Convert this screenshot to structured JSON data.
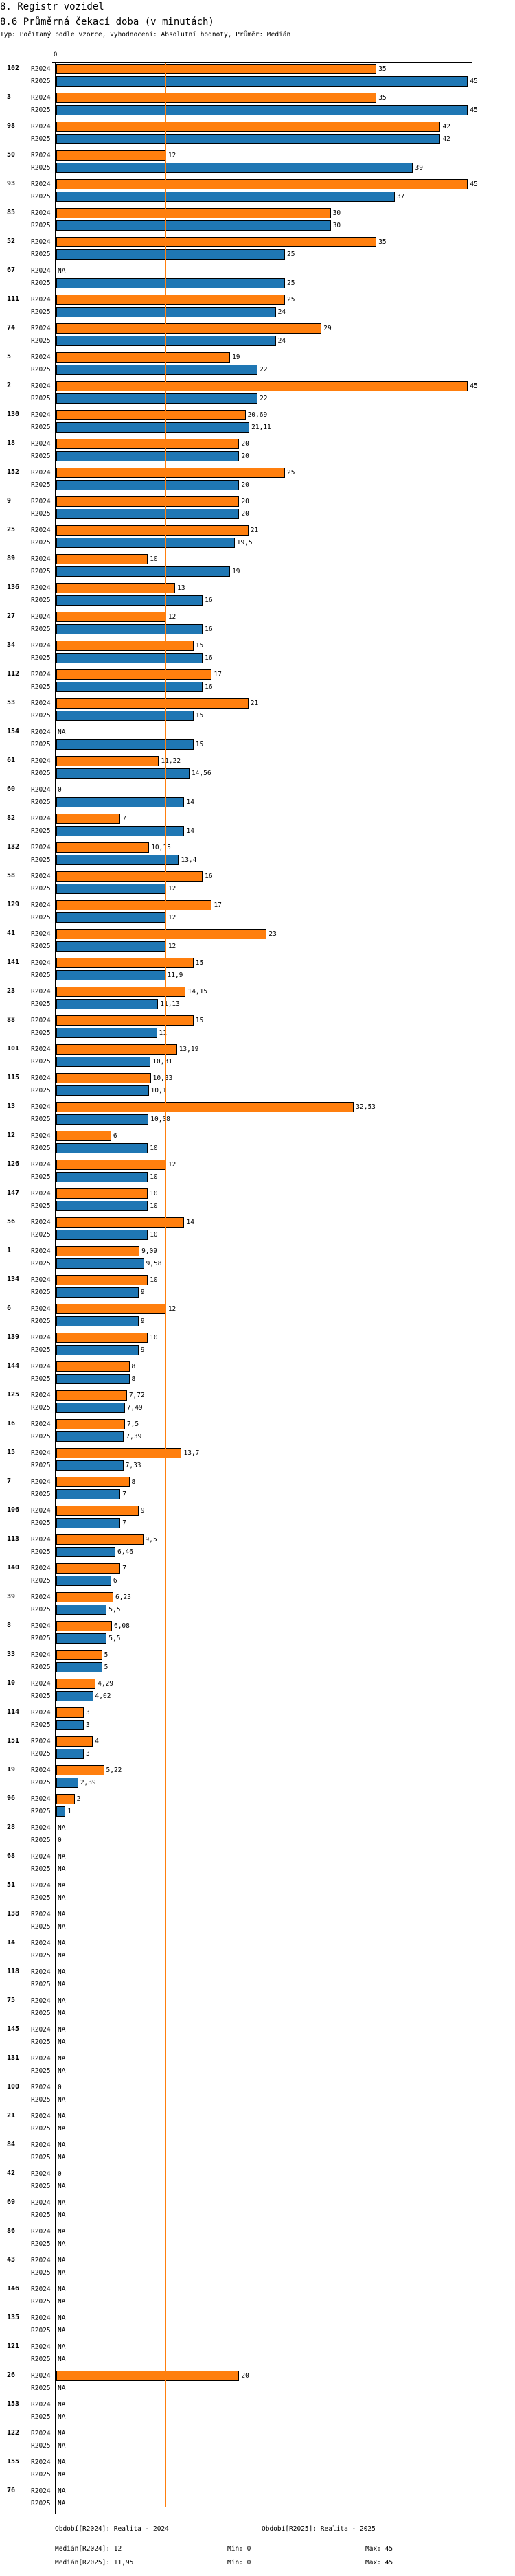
{
  "header": {
    "section": "8. Registr vozidel",
    "title": "8.6 Průměrná čekací doba (v minutách)",
    "subtitle": "Typ: Počítaný podle vzorce, Vyhodnocení: Absolutní hodnoty, Průměr: Medián"
  },
  "colors": {
    "R2024": "#ff7f0e",
    "R2025": "#1f77b4"
  },
  "chart_data": {
    "type": "bar",
    "orientation": "horizontal",
    "title": "8.6 Průměrná čekací doba (v minutách)",
    "axis_tick": "0",
    "xlim": [
      0,
      45
    ],
    "series_names": [
      "R2024",
      "R2025"
    ],
    "median_lines": {
      "R2024": 12,
      "R2025": 11.95
    },
    "groups": [
      {
        "id": "102",
        "R2024": "35",
        "R2025": "45"
      },
      {
        "id": "3",
        "R2024": "35",
        "R2025": "45"
      },
      {
        "id": "98",
        "R2024": "42",
        "R2025": "42"
      },
      {
        "id": "50",
        "R2024": "12",
        "R2025": "39"
      },
      {
        "id": "93",
        "R2024": "45",
        "R2025": "37"
      },
      {
        "id": "85",
        "R2024": "30",
        "R2025": "30"
      },
      {
        "id": "52",
        "R2024": "35",
        "R2025": "25"
      },
      {
        "id": "67",
        "R2024": "NA",
        "R2025": "25"
      },
      {
        "id": "111",
        "R2024": "25",
        "R2025": "24"
      },
      {
        "id": "74",
        "R2024": "29",
        "R2025": "24"
      },
      {
        "id": "5",
        "R2024": "19",
        "R2025": "22"
      },
      {
        "id": "2",
        "R2024": "45",
        "R2025": "22"
      },
      {
        "id": "130",
        "R2024": "20,69",
        "R2025": "21,11"
      },
      {
        "id": "18",
        "R2024": "20",
        "R2025": "20"
      },
      {
        "id": "152",
        "R2024": "25",
        "R2025": "20"
      },
      {
        "id": "9",
        "R2024": "20",
        "R2025": "20"
      },
      {
        "id": "25",
        "R2024": "21",
        "R2025": "19,5"
      },
      {
        "id": "89",
        "R2024": "10",
        "R2025": "19"
      },
      {
        "id": "136",
        "R2024": "13",
        "R2025": "16"
      },
      {
        "id": "27",
        "R2024": "12",
        "R2025": "16"
      },
      {
        "id": "34",
        "R2024": "15",
        "R2025": "16"
      },
      {
        "id": "112",
        "R2024": "17",
        "R2025": "16"
      },
      {
        "id": "53",
        "R2024": "21",
        "R2025": "15"
      },
      {
        "id": "154",
        "R2024": "NA",
        "R2025": "15"
      },
      {
        "id": "61",
        "R2024": "11,22",
        "R2025": "14,56"
      },
      {
        "id": "60",
        "R2024": "0",
        "R2025": "14"
      },
      {
        "id": "82",
        "R2024": "7",
        "R2025": "14"
      },
      {
        "id": "132",
        "R2024": "10,15",
        "R2025": "13,4"
      },
      {
        "id": "58",
        "R2024": "16",
        "R2025": "12"
      },
      {
        "id": "129",
        "R2024": "17",
        "R2025": "12"
      },
      {
        "id": "41",
        "R2024": "23",
        "R2025": "12"
      },
      {
        "id": "141",
        "R2024": "15",
        "R2025": "11,9"
      },
      {
        "id": "23",
        "R2024": "14,15",
        "R2025": "11,13"
      },
      {
        "id": "88",
        "R2024": "15",
        "R2025": "11"
      },
      {
        "id": "101",
        "R2024": "13,19",
        "R2025": "10,31"
      },
      {
        "id": "115",
        "R2024": "10,33",
        "R2025": "10,1"
      },
      {
        "id": "13",
        "R2024": "32,53",
        "R2025": "10,08"
      },
      {
        "id": "12",
        "R2024": "6",
        "R2025": "10"
      },
      {
        "id": "126",
        "R2024": "12",
        "R2025": "10"
      },
      {
        "id": "147",
        "R2024": "10",
        "R2025": "10"
      },
      {
        "id": "56",
        "R2024": "14",
        "R2025": "10"
      },
      {
        "id": "1",
        "R2024": "9,09",
        "R2025": "9,58"
      },
      {
        "id": "134",
        "R2024": "10",
        "R2025": "9"
      },
      {
        "id": "6",
        "R2024": "12",
        "R2025": "9"
      },
      {
        "id": "139",
        "R2024": "10",
        "R2025": "9"
      },
      {
        "id": "144",
        "R2024": "8",
        "R2025": "8"
      },
      {
        "id": "125",
        "R2024": "7,72",
        "R2025": "7,49"
      },
      {
        "id": "16",
        "R2024": "7,5",
        "R2025": "7,39"
      },
      {
        "id": "15",
        "R2024": "13,7",
        "R2025": "7,33"
      },
      {
        "id": "7",
        "R2024": "8",
        "R2025": "7"
      },
      {
        "id": "106",
        "R2024": "9",
        "R2025": "7"
      },
      {
        "id": "113",
        "R2024": "9,5",
        "R2025": "6,46"
      },
      {
        "id": "140",
        "R2024": "7",
        "R2025": "6"
      },
      {
        "id": "39",
        "R2024": "6,23",
        "R2025": "5,5"
      },
      {
        "id": "8",
        "R2024": "6,08",
        "R2025": "5,5"
      },
      {
        "id": "33",
        "R2024": "5",
        "R2025": "5"
      },
      {
        "id": "10",
        "R2024": "4,29",
        "R2025": "4,02"
      },
      {
        "id": "114",
        "R2024": "3",
        "R2025": "3"
      },
      {
        "id": "151",
        "R2024": "4",
        "R2025": "3"
      },
      {
        "id": "19",
        "R2024": "5,22",
        "R2025": "2,39"
      },
      {
        "id": "96",
        "R2024": "2",
        "R2025": "1"
      },
      {
        "id": "28",
        "R2024": "NA",
        "R2025": "0"
      },
      {
        "id": "68",
        "R2024": "NA",
        "R2025": "NA"
      },
      {
        "id": "51",
        "R2024": "NA",
        "R2025": "NA"
      },
      {
        "id": "138",
        "R2024": "NA",
        "R2025": "NA"
      },
      {
        "id": "14",
        "R2024": "NA",
        "R2025": "NA"
      },
      {
        "id": "118",
        "R2024": "NA",
        "R2025": "NA"
      },
      {
        "id": "75",
        "R2024": "NA",
        "R2025": "NA"
      },
      {
        "id": "145",
        "R2024": "NA",
        "R2025": "NA"
      },
      {
        "id": "131",
        "R2024": "NA",
        "R2025": "NA"
      },
      {
        "id": "100",
        "R2024": "0",
        "R2025": "NA"
      },
      {
        "id": "21",
        "R2024": "NA",
        "R2025": "NA"
      },
      {
        "id": "84",
        "R2024": "NA",
        "R2025": "NA"
      },
      {
        "id": "42",
        "R2024": "0",
        "R2025": "NA"
      },
      {
        "id": "69",
        "R2024": "NA",
        "R2025": "NA"
      },
      {
        "id": "86",
        "R2024": "NA",
        "R2025": "NA"
      },
      {
        "id": "43",
        "R2024": "NA",
        "R2025": "NA"
      },
      {
        "id": "146",
        "R2024": "NA",
        "R2025": "NA"
      },
      {
        "id": "135",
        "R2024": "NA",
        "R2025": "NA"
      },
      {
        "id": "121",
        "R2024": "NA",
        "R2025": "NA"
      },
      {
        "id": "26",
        "R2024": "20",
        "R2025": "NA"
      },
      {
        "id": "153",
        "R2024": "NA",
        "R2025": "NA"
      },
      {
        "id": "122",
        "R2024": "NA",
        "R2025": "NA"
      },
      {
        "id": "155",
        "R2024": "NA",
        "R2025": "NA"
      },
      {
        "id": "76",
        "R2024": "NA",
        "R2025": "NA"
      }
    ]
  },
  "footer": {
    "period_r2024": "Období[R2024]: Realita - 2024",
    "period_r2025": "Období[R2025]: Realita - 2025",
    "median_r2024": "Medián[R2024]: 12",
    "median_r2025": "Medián[R2025]: 11,95",
    "min_r2024": "Min: 0",
    "min_r2025": "Min: 0",
    "max_r2024": "Max: 45",
    "max_r2025": "Max: 45"
  }
}
